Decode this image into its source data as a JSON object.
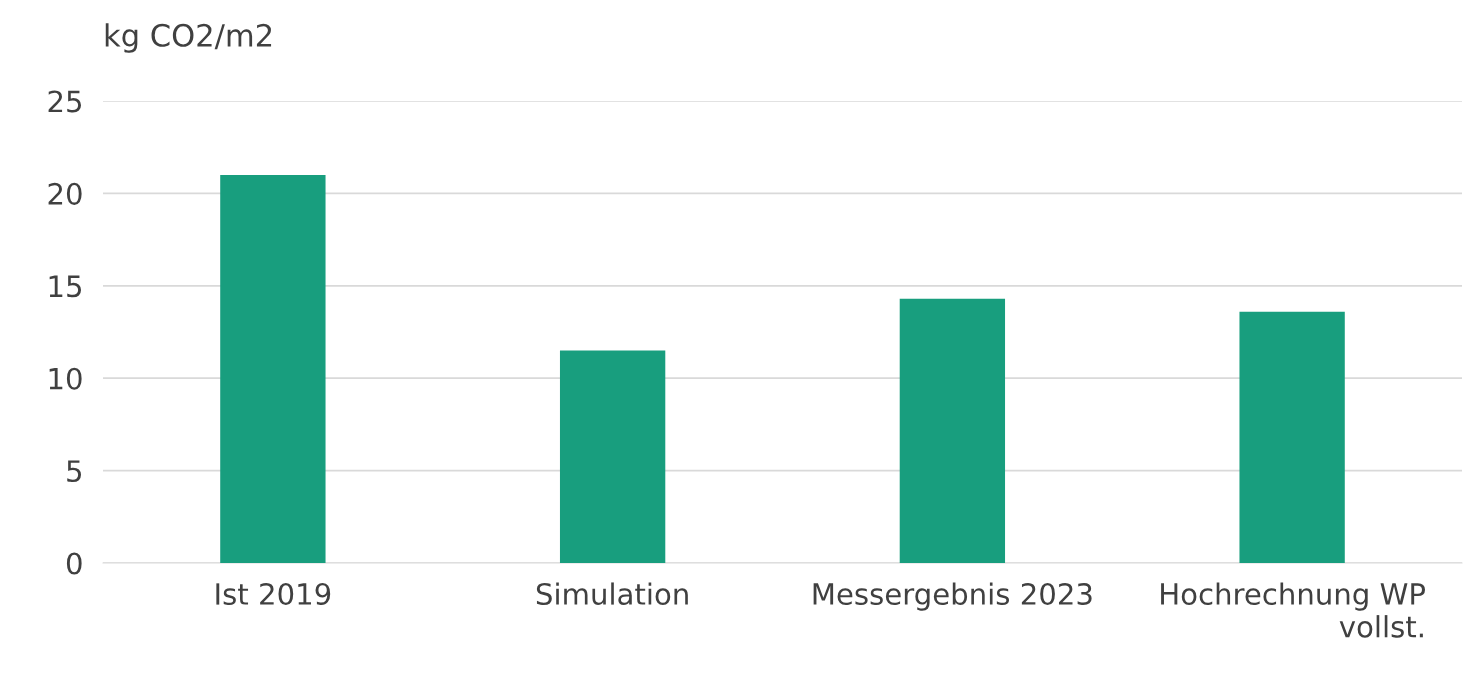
{
  "chart_data": {
    "type": "bar",
    "ylabel": "kg CO2/m2",
    "categories": [
      "Ist 2019",
      "Simulation",
      "Messergebnis 2023",
      "Hochrechnung WP vollst."
    ],
    "values": [
      21.0,
      11.5,
      14.3,
      13.6
    ],
    "color": "#189e7e",
    "ylim": [
      0,
      25
    ],
    "yticks": [
      0,
      5,
      10,
      15,
      20,
      25
    ],
    "grid": "y",
    "legend": false
  }
}
